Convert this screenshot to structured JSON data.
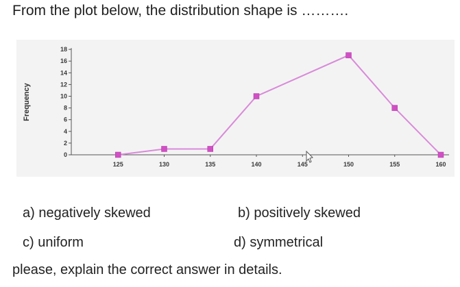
{
  "question": {
    "text": "From the plot below, the distribution shape is ………."
  },
  "chart_data": {
    "type": "line",
    "title": "",
    "xlabel": "",
    "ylabel": "Frequency",
    "x": [
      125,
      130,
      135,
      140,
      145,
      150,
      155,
      160
    ],
    "series": [
      {
        "x": [
          125,
          130,
          135,
          140,
          150,
          155,
          160
        ],
        "values": [
          0,
          1,
          1,
          10,
          17,
          8,
          0
        ]
      }
    ],
    "x_ticks": [
      "125",
      "130",
      "135",
      "140",
      "145",
      "150",
      "155",
      "160"
    ],
    "y_ticks": [
      "0",
      "2",
      "4",
      "6",
      "8",
      "10",
      "12",
      "14",
      "16",
      "18"
    ],
    "xlim": [
      120,
      160
    ],
    "ylim": [
      0,
      18
    ],
    "grid": false,
    "line_color": "#d98ad9",
    "marker_color": "#d14fc4"
  },
  "options": {
    "a": "a) negatively skewed",
    "b": "b) positively skewed",
    "c": "c) uniform",
    "d": "d) symmetrical"
  },
  "instruction": {
    "text": "please, explain the correct answer in details."
  }
}
